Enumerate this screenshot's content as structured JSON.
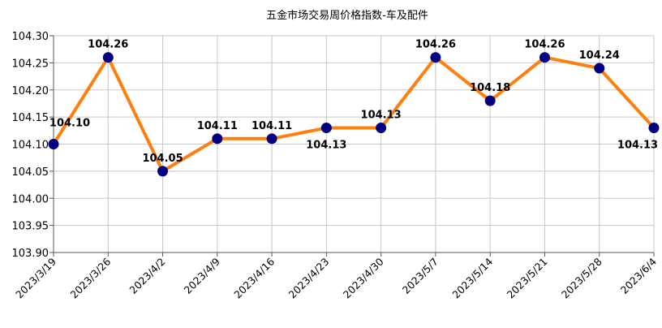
{
  "chart_data": {
    "type": "line",
    "title": "五金市场交易周价格指数-车及配件",
    "xlabel": "",
    "ylabel": "",
    "categories": [
      "2023/3/19",
      "2023/3/26",
      "2023/4/2",
      "2023/4/9",
      "2023/4/16",
      "2023/4/23",
      "2023/4/30",
      "2023/5/7",
      "2023/5/14",
      "2023/5/21",
      "2023/5/28",
      "2023/6/4"
    ],
    "series": [
      {
        "values": [
          104.1,
          104.26,
          104.05,
          104.11,
          104.11,
          104.13,
          104.13,
          104.26,
          104.18,
          104.26,
          104.24,
          104.13
        ],
        "data_labels": [
          "104.10",
          "104.26",
          "104.05",
          "104.11",
          "104.11",
          "104.13",
          "104.13",
          "104.26",
          "104.18",
          "104.26",
          "104.24",
          "104.13"
        ]
      }
    ],
    "ylim": [
      103.9,
      104.3
    ],
    "yticks": [
      "104.30",
      "104.25",
      "104.20",
      "104.15",
      "104.10",
      "104.05",
      "104.00",
      "103.95",
      "103.90"
    ],
    "grid": true,
    "legend": "none",
    "colors": {
      "line": "#ff7f0e",
      "marker": "#000080",
      "grid": "#c8c8c8"
    }
  }
}
